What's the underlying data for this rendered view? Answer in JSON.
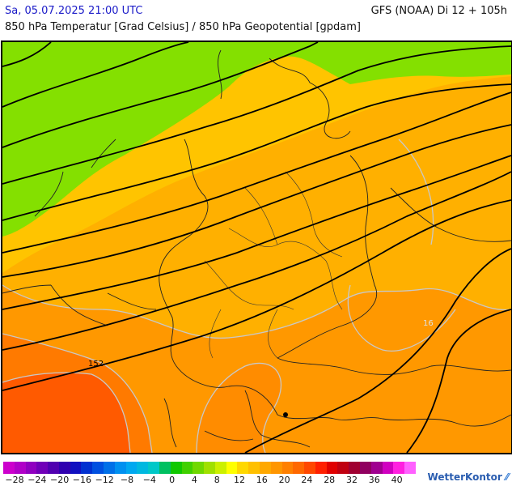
{
  "header": {
    "datetime": "Sa, 05.07.2025 21:00 UTC",
    "model": "GFS (NOAA) Di 12 + 105h",
    "subtitle": "850 hPa Temperatur [Grad Celsius] / 850 hPa Geopotential [gpdam]"
  },
  "map": {
    "contour_labels": {
      "geopotential": "152",
      "temperature": "16"
    },
    "colors": {
      "green": "#84e000",
      "yellow": "#ffc400",
      "orange_light": "#ffb000",
      "orange": "#ff9800",
      "orange_dark": "#ff7a00",
      "red_orange": "#ff5a00",
      "isohypse": "#000000",
      "isotherm": "#c8c8c8",
      "border": "#222222"
    }
  },
  "colorbar": {
    "ticks": [
      "−28",
      "−24",
      "−20",
      "−16",
      "−12",
      "−8",
      "−4",
      "0",
      "4",
      "8",
      "12",
      "16",
      "20",
      "24",
      "28",
      "32",
      "36",
      "40"
    ],
    "colors": [
      "#cc00cc",
      "#b000c8",
      "#9000c0",
      "#7000b8",
      "#5000b0",
      "#3000b0",
      "#1010c0",
      "#0030d0",
      "#0050e0",
      "#0070e8",
      "#0090f0",
      "#00a8f0",
      "#00b8e0",
      "#00c8c8",
      "#00c060",
      "#10c800",
      "#40d000",
      "#70d800",
      "#a0e000",
      "#ccf000",
      "#ffff00",
      "#ffd800",
      "#ffc000",
      "#ffa800",
      "#ff9600",
      "#ff8000",
      "#ff6800",
      "#ff4800",
      "#ff2000",
      "#e00000",
      "#c00010",
      "#a00030",
      "#900060",
      "#a00090",
      "#d000c0",
      "#ff20e0",
      "#ff60ff"
    ]
  },
  "logo": "WetterKontor"
}
